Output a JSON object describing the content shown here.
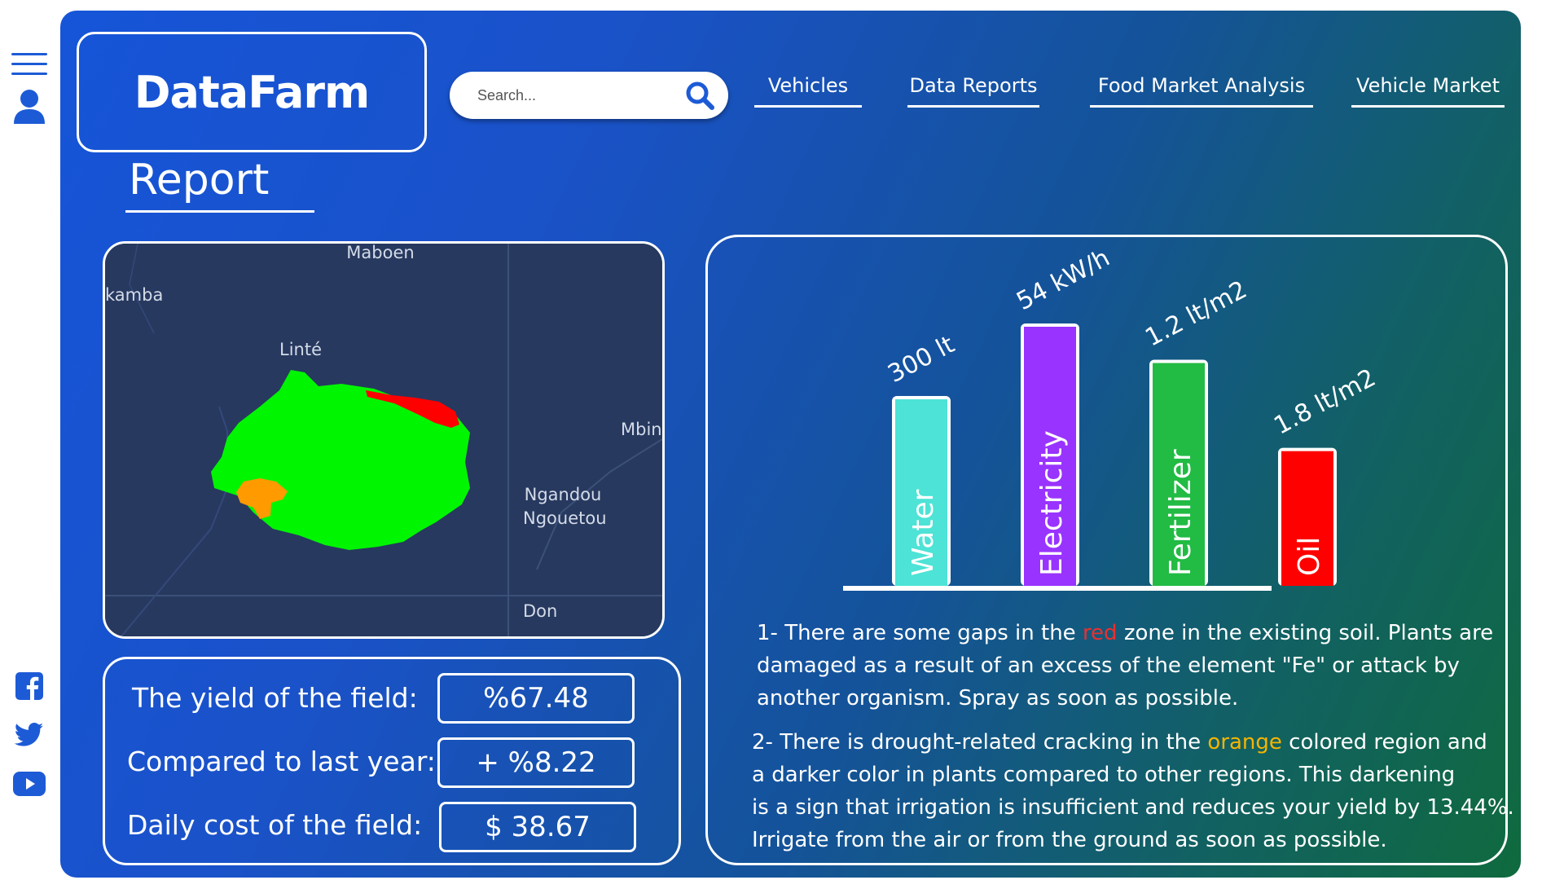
{
  "sidebar": {
    "icons": [
      "hamburger-menu-icon",
      "user-icon",
      "facebook-icon",
      "twitter-icon",
      "youtube-icon"
    ]
  },
  "header": {
    "logo": "DataFarm",
    "search": {
      "placeholder": "Search..."
    },
    "nav": [
      "Vehicles",
      "Data Reports",
      "Food Market Analysis",
      "Vehicle Market"
    ]
  },
  "report": {
    "title": "Report"
  },
  "map": {
    "places": [
      "Maboen",
      "kamba",
      "Linté",
      "Mbin",
      "Ngandou",
      "Ngouetou",
      "Don"
    ],
    "zone_colors": {
      "healthy": "#00f500",
      "gap": "#ff0000",
      "drought": "#ff9900"
    }
  },
  "stats": [
    {
      "label": "The yield of the field:",
      "value": "%67.48"
    },
    {
      "label": "Compared to last year:",
      "value": "+ %8.22"
    },
    {
      "label": "Daily cost of the field:",
      "value": "$ 38.67"
    }
  ],
  "chart_data": {
    "type": "bar",
    "categories": [
      "Water",
      "Electricity",
      "Fertilizer",
      "Oil"
    ],
    "data_labels": [
      "300 lt",
      "54 kW/h",
      "1.2 lt/m2",
      "1.8 lt/m2"
    ],
    "values": [
      300,
      54,
      1.2,
      1.8
    ],
    "units": [
      "lt",
      "kW/h",
      "lt/m2",
      "lt/m2"
    ],
    "relative_bar_heights": [
      0.72,
      1.0,
      0.86,
      0.52
    ],
    "colors": [
      "#4de3d6",
      "#9933ff",
      "#22bb44",
      "#ff0000"
    ],
    "title": "",
    "xlabel": "",
    "ylabel": ""
  },
  "notes": {
    "n1": {
      "l1a": "1- There are some gaps in the ",
      "l1red": "red",
      "l1b": " zone in the existing soil. Plants are",
      "l2": "damaged as a result of an excess of the element \"Fe\" or attack by",
      "l3": "another organism. Spray as soon as possible."
    },
    "n2": {
      "l1a": "2- There is drought-related cracking in the ",
      "l1orange": "orange",
      "l1b": " colored region and",
      "l2": "a darker color in plants compared to other regions. This darkening",
      "l3": "is a sign that irrigation is insufficient and reduces your yield by 13.44%.",
      "l4": "Irrigate from the air or from the ground as soon as possible."
    }
  }
}
